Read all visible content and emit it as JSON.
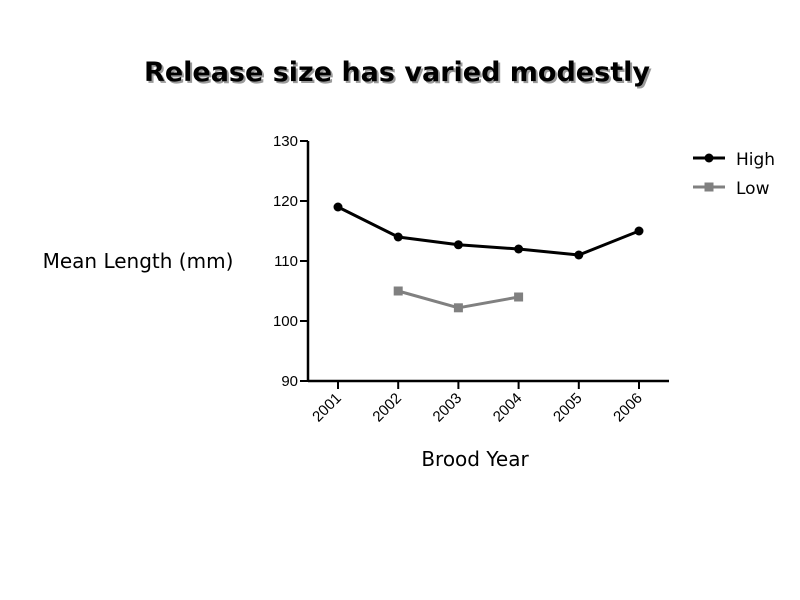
{
  "chart_data": {
    "type": "line",
    "title": "Release size has varied modestly",
    "xlabel": "Brood Year",
    "ylabel": "Mean Length (mm)",
    "categories": [
      "2001",
      "2002",
      "2003",
      "2004",
      "2005",
      "2006"
    ],
    "ylim": [
      90,
      130
    ],
    "yticks": [
      90,
      100,
      110,
      120,
      130
    ],
    "grid": false,
    "legend_position": "top-right",
    "series": [
      {
        "name": "High",
        "color": "#000000",
        "marker": "circle",
        "values": [
          119,
          114,
          112.7,
          112,
          111,
          115
        ]
      },
      {
        "name": "Low",
        "color": "#808080",
        "marker": "square",
        "values": [
          null,
          105,
          102.2,
          104,
          null,
          null
        ]
      }
    ]
  }
}
